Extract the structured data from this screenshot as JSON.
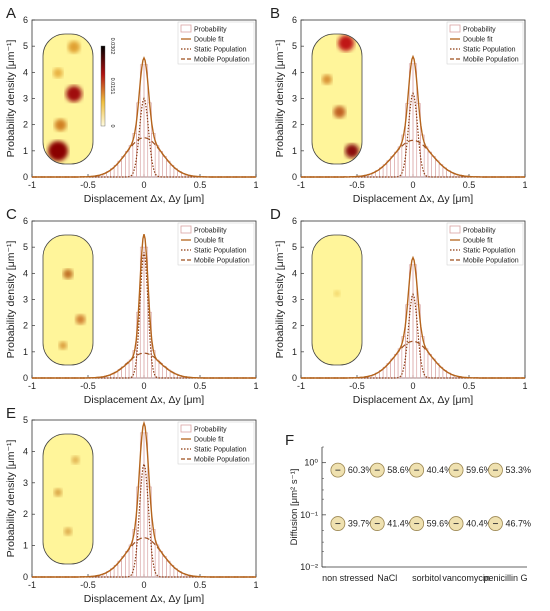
{
  "colors": {
    "bar_edge": "#d9a3a3",
    "double_fit": "#b5651d",
    "static": "#8c3b12",
    "mobile": "#9e4f1e",
    "cell_fill": "#fff59a",
    "bubble_fill": "#efe1b0",
    "bubble_edge": "#9a8550"
  },
  "legend": {
    "probability": "Probability",
    "double_fit": "Double fit",
    "static": "Static Population",
    "mobile": "Mobile Population"
  },
  "colorbar_ticks": [
    "0.0302",
    "0.0151",
    "0"
  ],
  "chart_data": [
    {
      "panel": "A",
      "type": "bar",
      "xlabel": "Displacement Δx, Δy [μm]",
      "ylabel": "Probability density [μm⁻¹]",
      "xlim": [
        -1,
        1
      ],
      "ylim": [
        0,
        6
      ],
      "xticks": [
        "-1",
        "-0.5",
        "0",
        "0.5",
        "1"
      ],
      "yticks": [
        "0",
        "1",
        "2",
        "3",
        "4",
        "5",
        "6"
      ],
      "peak": 4.55,
      "static_peak": 3.0,
      "mobile_peak": 1.5,
      "static_sigma": 0.04,
      "mobile_sigma": 0.16,
      "inset_colorbar": true
    },
    {
      "panel": "B",
      "type": "bar",
      "xlabel": "Displacement Δx, Δy [μm]",
      "ylabel": "Probability density [μm⁻¹]",
      "xlim": [
        -1,
        1
      ],
      "ylim": [
        0,
        6
      ],
      "xticks": [
        "-1",
        "-0.5",
        "0",
        "0.5",
        "1"
      ],
      "yticks": [
        "0",
        "1",
        "2",
        "3",
        "4",
        "5",
        "6"
      ],
      "peak": 4.6,
      "static_peak": 3.2,
      "mobile_peak": 1.4,
      "static_sigma": 0.04,
      "mobile_sigma": 0.17,
      "inset_colorbar": false
    },
    {
      "panel": "C",
      "type": "bar",
      "xlabel": "Displacement Δx, Δy [μm]",
      "ylabel": "Probability density [μm⁻¹]",
      "xlim": [
        -1,
        1
      ],
      "ylim": [
        0,
        6
      ],
      "xticks": [
        "-1",
        "-0.5",
        "0",
        "0.5",
        "1"
      ],
      "yticks": [
        "0",
        "1",
        "2",
        "3",
        "4",
        "5",
        "6"
      ],
      "peak": 5.5,
      "static_peak": 4.8,
      "mobile_peak": 0.95,
      "static_sigma": 0.035,
      "mobile_sigma": 0.15,
      "inset_colorbar": false
    },
    {
      "panel": "D",
      "type": "bar",
      "xlabel": "Displacement Δx, Δy [μm]",
      "ylabel": "Probability density [μm⁻¹]",
      "xlim": [
        -1,
        1
      ],
      "ylim": [
        0,
        6
      ],
      "xticks": [
        "-1",
        "-0.5",
        "0",
        "0.5",
        "1"
      ],
      "yticks": [
        "0",
        "1",
        "2",
        "3",
        "4",
        "5",
        "6"
      ],
      "peak": 4.6,
      "static_peak": 3.2,
      "mobile_peak": 1.4,
      "static_sigma": 0.04,
      "mobile_sigma": 0.16,
      "inset_colorbar": false
    },
    {
      "panel": "E",
      "type": "bar",
      "xlabel": "Displacement Δx, Δy [μm]",
      "ylabel": "Probability density [μm⁻¹]",
      "xlim": [
        -1,
        1
      ],
      "ylim": [
        0,
        5
      ],
      "xticks": [
        "-1",
        "-0.5",
        "0",
        "0.5",
        "1"
      ],
      "yticks": [
        "0",
        "1",
        "2",
        "3",
        "4",
        "5"
      ],
      "peak": 4.9,
      "static_peak": 3.6,
      "mobile_peak": 1.25,
      "static_sigma": 0.04,
      "mobile_sigma": 0.16,
      "inset_colorbar": false
    },
    {
      "panel": "F",
      "type": "scatter",
      "ylabel": "Diffusion [μm² s⁻¹]",
      "yscale": "log",
      "ylim": [
        0.01,
        2
      ],
      "yticks": [
        "10⁻²",
        "10⁻¹",
        "10⁰"
      ],
      "categories": [
        "non stressed",
        "NaCl",
        "sorbitol",
        "vancomycin",
        "penicillin G"
      ],
      "series": [
        {
          "y": 0.72,
          "labels": [
            "60.3%",
            "58.6%",
            "40.4%",
            "59.6%",
            "53.3%"
          ]
        },
        {
          "y": 0.068,
          "labels": [
            "39.7%",
            "41.4%",
            "59.6%",
            "40.4%",
            "46.7%"
          ]
        }
      ]
    }
  ]
}
